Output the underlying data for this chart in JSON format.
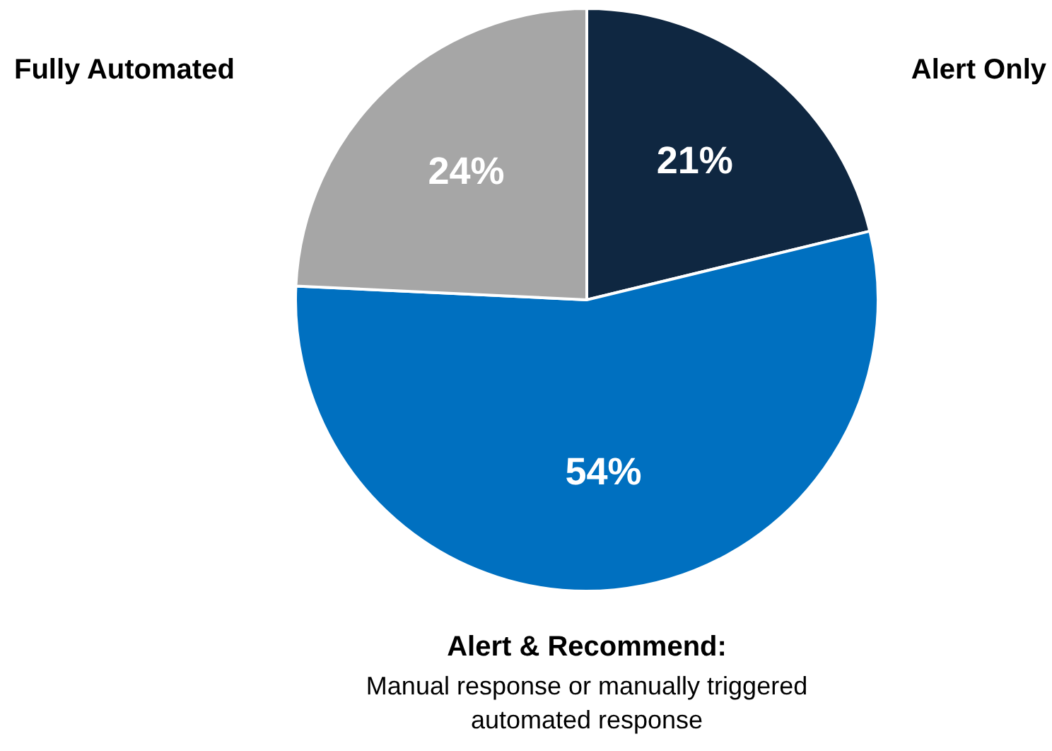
{
  "chart_data": {
    "type": "pie",
    "categories": [
      "Alert Only",
      "Alert & Recommend: Manual response or manually triggered automated response",
      "Fully Automated"
    ],
    "values": [
      21,
      54,
      24
    ],
    "value_labels": [
      "21%",
      "54%",
      "24%"
    ],
    "colors": [
      "#0f2741",
      "#0070c0",
      "#a6a6a6"
    ],
    "legend": false
  }
}
